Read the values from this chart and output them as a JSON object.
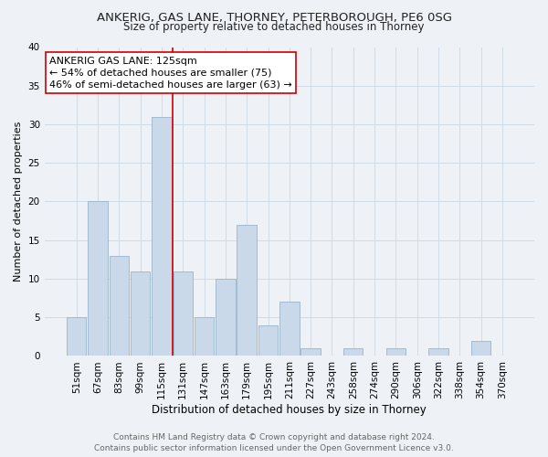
{
  "title": "ANKERIG, GAS LANE, THORNEY, PETERBOROUGH, PE6 0SG",
  "subtitle": "Size of property relative to detached houses in Thorney",
  "xlabel": "Distribution of detached houses by size in Thorney",
  "ylabel": "Number of detached properties",
  "categories": [
    "51sqm",
    "67sqm",
    "83sqm",
    "99sqm",
    "115sqm",
    "131sqm",
    "147sqm",
    "163sqm",
    "179sqm",
    "195sqm",
    "211sqm",
    "227sqm",
    "243sqm",
    "258sqm",
    "274sqm",
    "290sqm",
    "306sqm",
    "322sqm",
    "338sqm",
    "354sqm",
    "370sqm"
  ],
  "values": [
    5,
    20,
    13,
    11,
    31,
    11,
    5,
    10,
    17,
    4,
    7,
    1,
    0,
    1,
    0,
    1,
    0,
    1,
    0,
    2,
    0
  ],
  "bar_color": "#c9d9ea",
  "bar_edge_color": "#9ab4cc",
  "highlight_line_color": "#cc0000",
  "annotation_text": "ANKERIG GAS LANE: 125sqm\n← 54% of detached houses are smaller (75)\n46% of semi-detached houses are larger (63) →",
  "annotation_box_color": "#ffffff",
  "annotation_box_edge": "#cc0000",
  "ylim": [
    0,
    40
  ],
  "yticks": [
    0,
    5,
    10,
    15,
    20,
    25,
    30,
    35,
    40
  ],
  "grid_color": "#d0dbe5",
  "background_color": "#eef2f7",
  "footer_text": "Contains HM Land Registry data © Crown copyright and database right 2024.\nContains public sector information licensed under the Open Government Licence v3.0.",
  "title_fontsize": 9.5,
  "subtitle_fontsize": 8.5,
  "xlabel_fontsize": 8.5,
  "ylabel_fontsize": 8,
  "tick_fontsize": 7.5,
  "annotation_fontsize": 8,
  "footer_fontsize": 6.5
}
